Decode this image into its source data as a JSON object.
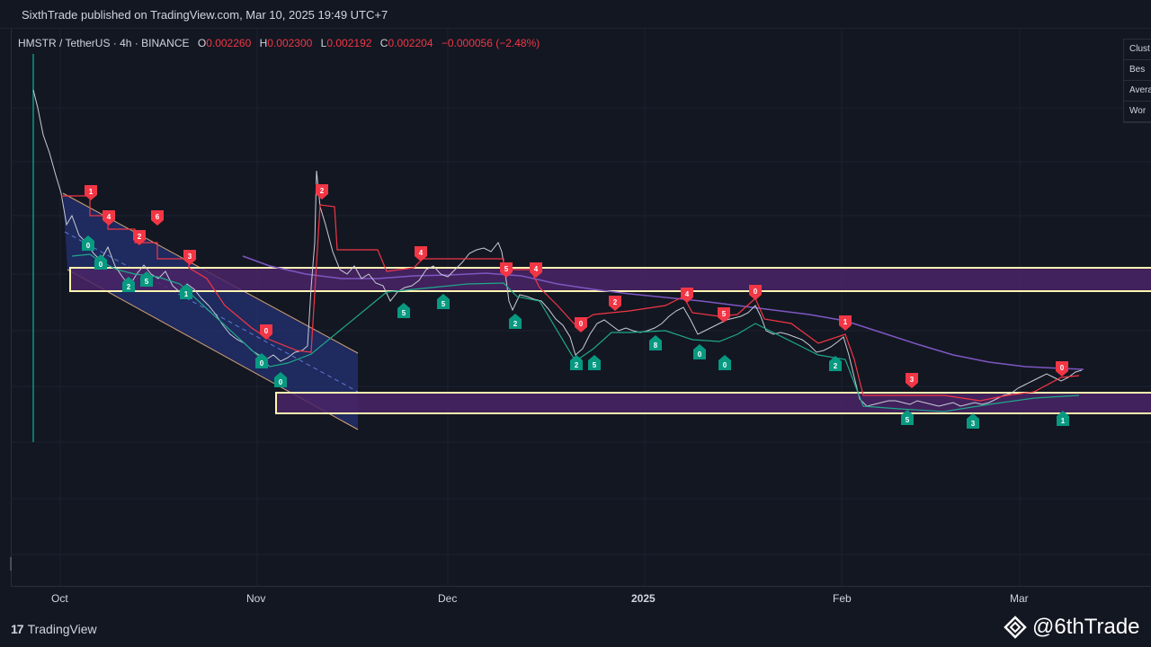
{
  "header": {
    "published": "SixthTrade published on TradingView.com, Mar 10, 2025 19:49 UTC+7"
  },
  "legend": {
    "symbol": "HMSTR / TetherUS · 4h · BINANCE",
    "o_label": "O",
    "o_value": "0.002260",
    "h_label": "H",
    "h_value": "0.002300",
    "l_label": "L",
    "l_value": "0.002192",
    "c_label": "C",
    "c_value": "0.002204",
    "change": "−0.000056 (−2.48%)"
  },
  "stats_table": {
    "rows": [
      "Clust",
      "Bes",
      "Avera",
      "Wor"
    ]
  },
  "x_axis": {
    "labels": [
      "Oct",
      "Nov",
      "Dec",
      "2025",
      "Feb",
      "Mar"
    ]
  },
  "footer": {
    "brand": "TradingView",
    "brand_mark": "17",
    "handle": "@6thTrade"
  },
  "colors": {
    "background": "#131722",
    "bear": "#f23645",
    "bull": "#089981",
    "zone_border": "#fff5b0",
    "zone_fill": "#4a2566",
    "channel_fill": "#2a3a8f",
    "ma_line": "#7e57c2"
  },
  "markers": {
    "sell": [
      "1",
      "4",
      "6",
      "2",
      "3",
      "0",
      "2",
      "4",
      "5",
      "4",
      "0",
      "2",
      "4",
      "5",
      "0",
      "1",
      "3",
      "0"
    ],
    "buy": [
      "0",
      "0",
      "2",
      "5",
      "1",
      "0",
      "0",
      "5",
      "5",
      "2",
      "2",
      "5",
      "8",
      "0",
      "0",
      "2",
      "5",
      "3",
      "1"
    ]
  }
}
